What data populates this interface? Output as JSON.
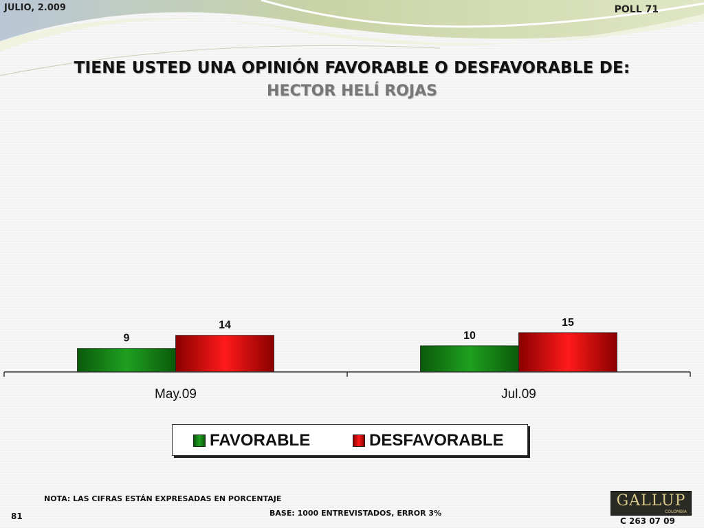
{
  "header": {
    "date": "JULIO, 2.009",
    "poll": "POLL 71"
  },
  "title": "TIENE USTED UNA OPINIÓN FAVORABLE O DESFAVORABLE DE:",
  "subtitle": "HECTOR HELÍ ROJAS",
  "colors": {
    "favorable": "#1a8a1a",
    "desfavorable": "#e00000"
  },
  "chart_data": {
    "type": "bar",
    "categories": [
      "May.09",
      "Jul.09"
    ],
    "series": [
      {
        "name": "FAVORABLE",
        "values": [
          9,
          10
        ]
      },
      {
        "name": "DESFAVORABLE",
        "values": [
          14,
          15
        ]
      }
    ],
    "ylim": [
      0,
      100
    ],
    "grid": false,
    "legend_position": "bottom"
  },
  "footer": {
    "note": "NOTA: LAS CIFRAS ESTÁN EXPRESADAS EN PORCENTAJE",
    "base": "BASE: 1000 ENTREVISTADOS, ERROR 3%",
    "page_number": "81",
    "logo": "GALLUP",
    "logo_sub": "COLOMBIA",
    "code": "C 263 07 09"
  }
}
